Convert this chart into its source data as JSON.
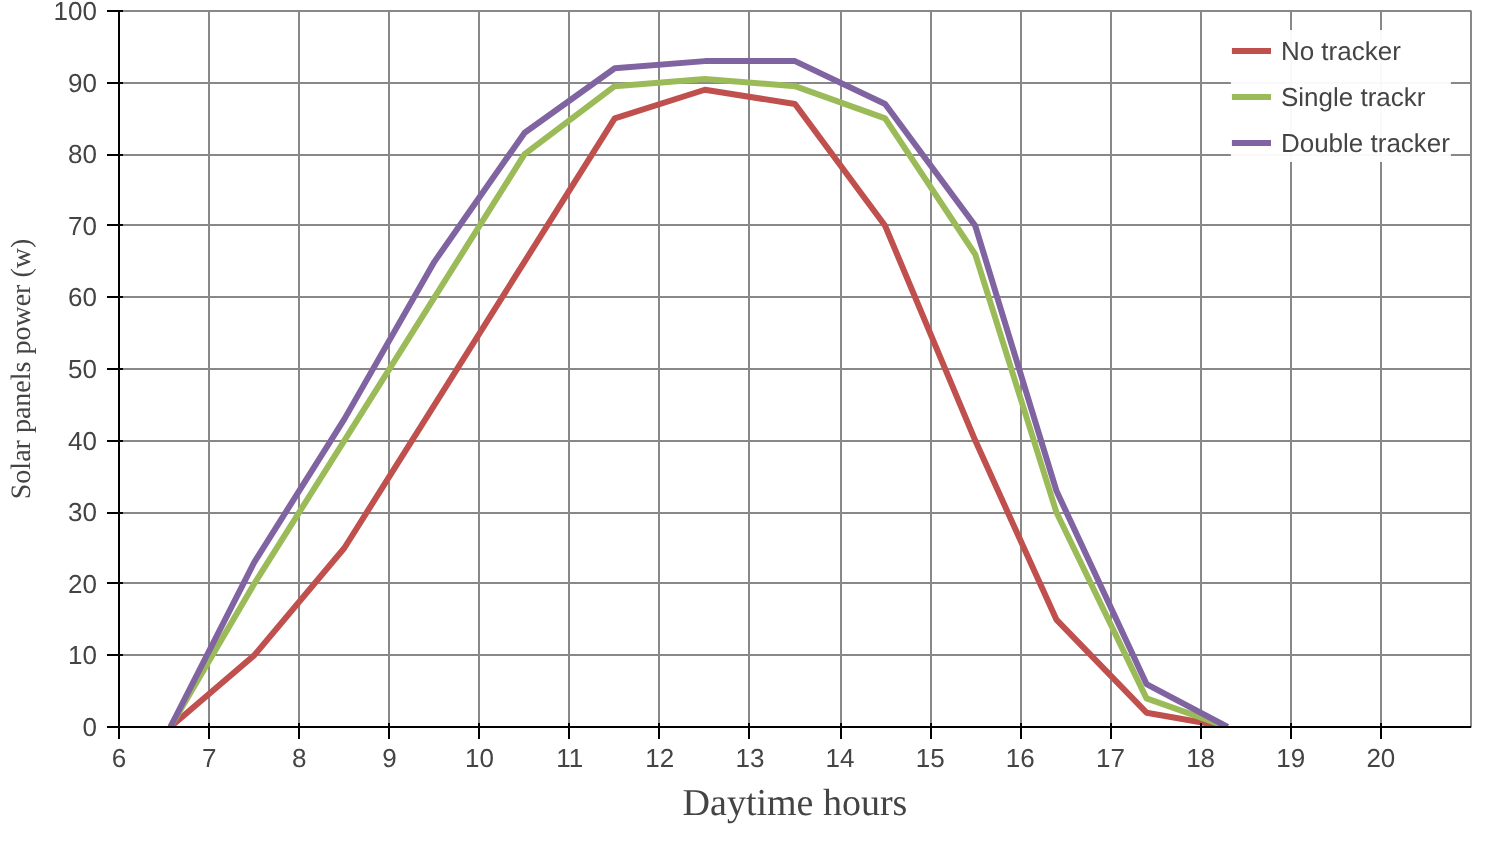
{
  "chart_data": {
    "type": "line",
    "xlabel": "Daytime hours",
    "ylabel": "Solar panels power (w)",
    "x": [
      6.57,
      7.5,
      8.5,
      9.5,
      10.5,
      11.5,
      12.5,
      13.5,
      14.5,
      15.5,
      16.4,
      17.4,
      18.3
    ],
    "series": [
      {
        "name": "No tracker",
        "color": "#c0504d",
        "values": [
          0,
          10,
          25,
          45,
          65,
          85,
          89,
          87,
          70,
          40,
          15,
          2,
          0
        ]
      },
      {
        "name": "Single trackr",
        "color": "#9bbb59",
        "values": [
          0,
          20,
          40,
          60,
          80,
          89.5,
          90.5,
          89.5,
          85,
          66,
          30,
          4,
          0
        ]
      },
      {
        "name": "Double tracker",
        "color": "#8064a2",
        "values": [
          0,
          23,
          43,
          65,
          83,
          92,
          93,
          93,
          87,
          70,
          33,
          6,
          0
        ]
      }
    ],
    "xlim": [
      6,
      21
    ],
    "xticks": [
      6,
      7,
      8,
      9,
      10,
      11,
      12,
      13,
      14,
      15,
      16,
      17,
      18,
      19,
      20
    ],
    "ylim": [
      0,
      100
    ],
    "yticks": [
      0,
      10,
      20,
      30,
      40,
      50,
      60,
      70,
      80,
      90,
      100
    ],
    "grid": true,
    "legend": "top right",
    "marker": "none",
    "line_style": "solid"
  }
}
